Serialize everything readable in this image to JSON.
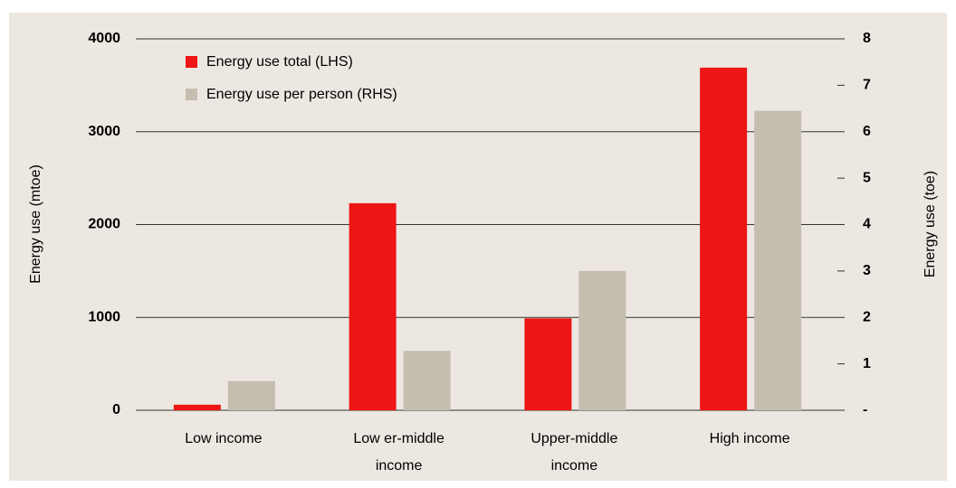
{
  "chart_data": {
    "type": "bar",
    "categories": [
      "Low  income",
      "Low er-middle income",
      "Upper-middle income",
      "High income"
    ],
    "series": [
      {
        "name": "Energy use total (LHS)",
        "color": "#ee1515",
        "values": [
          60,
          2230,
          990,
          3690
        ]
      },
      {
        "name": "Energy use per person (RHS)",
        "color": "#c5bdb0",
        "values": [
          0.63,
          1.28,
          3.0,
          6.45
        ],
        "axis": "y2"
      }
    ],
    "ylabel": "Energy use (mtoe)",
    "y2label": "Energy use (toe)",
    "ylim": [
      0,
      4000
    ],
    "yticks": [
      0,
      1000,
      2000,
      3000,
      4000
    ],
    "y2lim": [
      0,
      8
    ],
    "y2ticks": [
      {
        "value": 0,
        "label": "-"
      },
      1,
      2,
      3,
      4,
      5,
      6,
      7,
      8
    ],
    "grid": true,
    "legend": "upper left"
  }
}
